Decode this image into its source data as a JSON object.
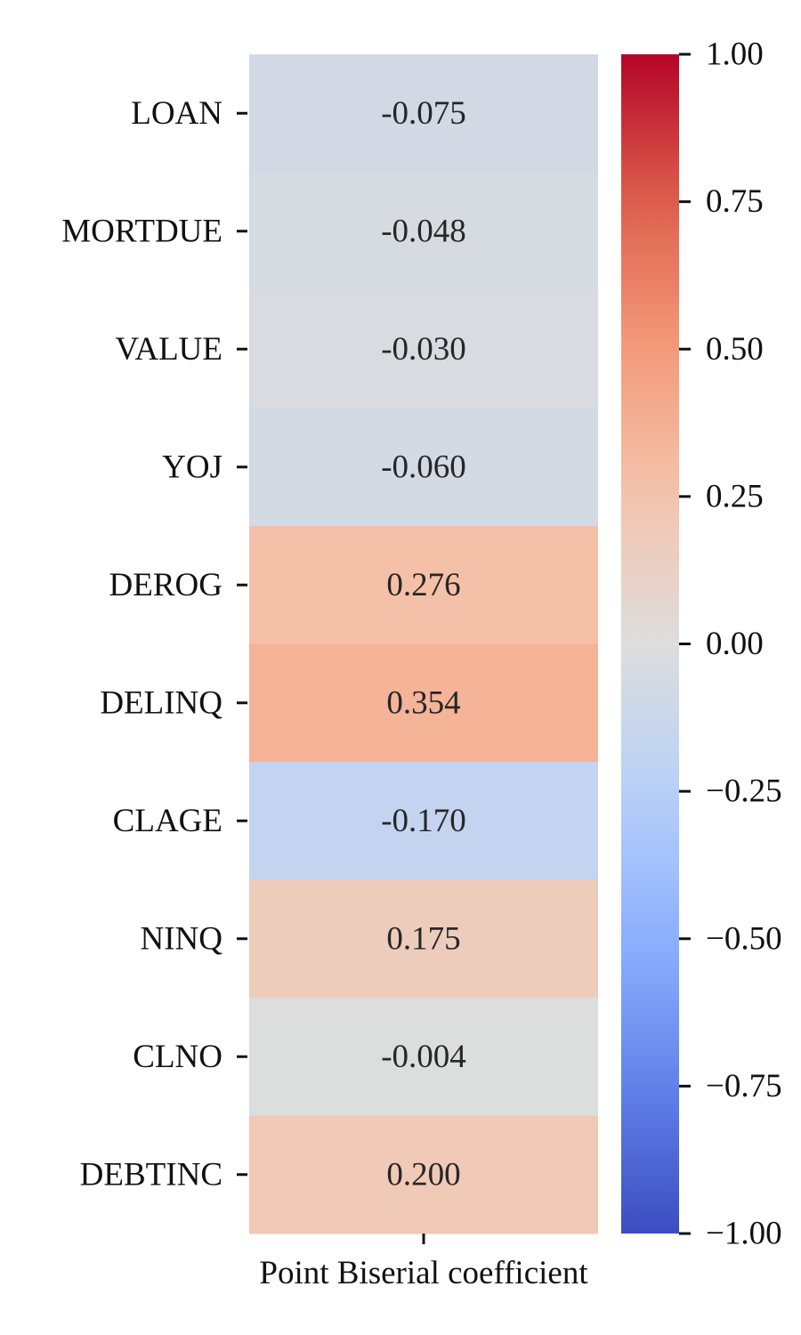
{
  "chart_data": {
    "type": "heatmap",
    "rows": [
      "LOAN",
      "MORTDUE",
      "VALUE",
      "YOJ",
      "DEROG",
      "DELINQ",
      "CLAGE",
      "NINQ",
      "CLNO",
      "DEBTINC"
    ],
    "columns": [
      "Point Biserial coefficient"
    ],
    "values": [
      -0.075,
      -0.048,
      -0.03,
      -0.06,
      0.276,
      0.354,
      -0.17,
      0.175,
      -0.004,
      0.2
    ],
    "value_labels": [
      "-0.075",
      "-0.048",
      "-0.030",
      "-0.060",
      "0.276",
      "0.354",
      "-0.170",
      "0.175",
      "-0.004",
      "0.200"
    ],
    "xlabel": "Point Biserial coefficient",
    "colormap": "coolwarm",
    "vmin": -1.0,
    "vmax": 1.0,
    "colorbar_ticks": [
      1.0,
      0.75,
      0.5,
      0.25,
      0.0,
      -0.25,
      -0.5,
      -0.75,
      -1.0
    ],
    "colorbar_tick_labels": [
      "1.00",
      "0.75",
      "0.50",
      "0.25",
      "0.00",
      "−0.25",
      "−0.50",
      "−0.75",
      "−1.00"
    ]
  }
}
